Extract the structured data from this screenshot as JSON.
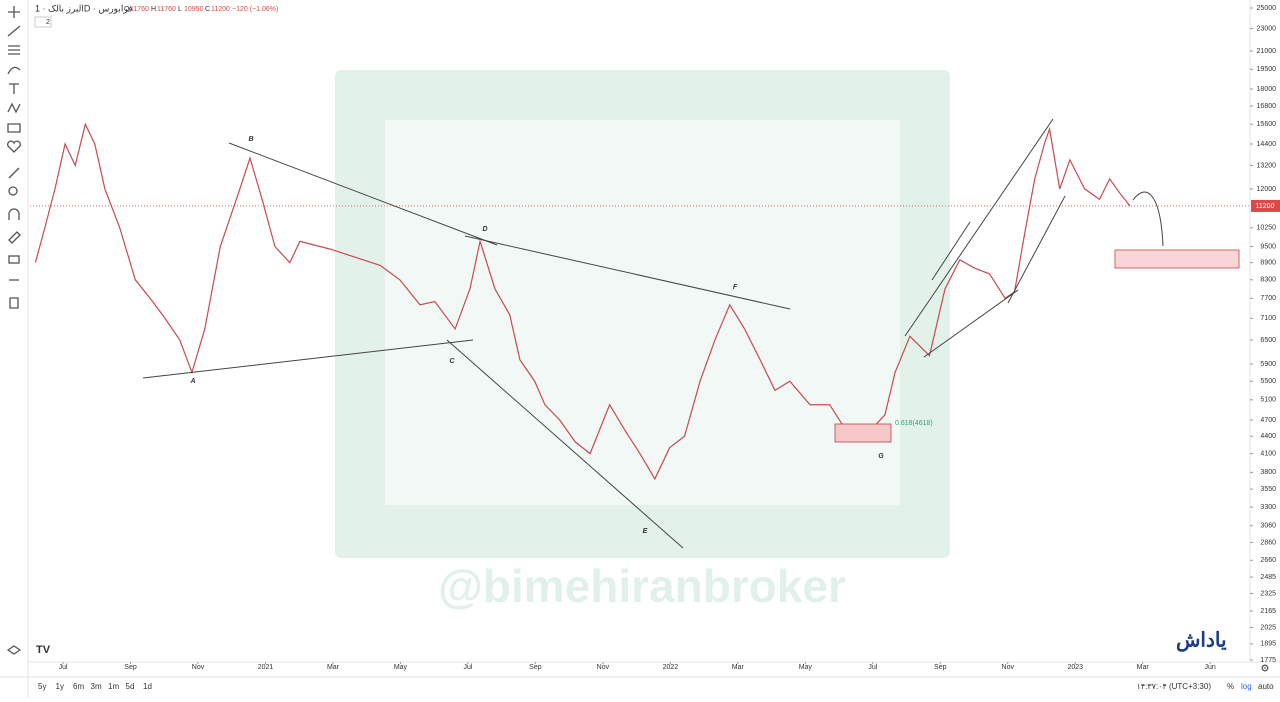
{
  "header": {
    "symbol": "البرز بالک · 1D · فرابورس",
    "ohlc": [
      {
        "label": "O",
        "value": 11760
      },
      {
        "label": "H",
        "value": 11760
      },
      {
        "label": "L",
        "value": 10950
      },
      {
        "label": "C",
        "value": 11200
      }
    ],
    "change": "−120 (−1.06%)",
    "indicator_count": "2"
  },
  "chart_data": {
    "type": "line",
    "log_scale": true,
    "color": "#c94a4f",
    "xlim": [
      -0.49,
      17.59
    ],
    "xticks": [
      {
        "value": 0,
        "label": "Jul"
      },
      {
        "value": 1,
        "label": "Sep"
      },
      {
        "value": 2,
        "label": "Nov"
      },
      {
        "value": 3,
        "label": "2021"
      },
      {
        "value": 4,
        "label": "Mar"
      },
      {
        "value": 5,
        "label": "May"
      },
      {
        "value": 6,
        "label": "Jul"
      },
      {
        "value": 7,
        "label": "Sep"
      },
      {
        "value": 8,
        "label": "Nov"
      },
      {
        "value": 9,
        "label": "2022"
      },
      {
        "value": 10,
        "label": "Mar"
      },
      {
        "value": 11,
        "label": "May"
      },
      {
        "value": 12,
        "label": "Jul"
      },
      {
        "value": 13,
        "label": "Sep"
      },
      {
        "value": 14,
        "label": "Nov"
      },
      {
        "value": 15,
        "label": "2023"
      },
      {
        "value": 16,
        "label": "Mar"
      },
      {
        "value": 17,
        "label": "Jun"
      }
    ],
    "ylim": [
      1775,
      25000
    ],
    "yticks": [
      1775,
      1895,
      2025,
      2165,
      2325,
      2485,
      2660,
      2860,
      3060,
      3300,
      3550,
      3800,
      4100,
      4400,
      4700,
      5100,
      5500,
      5900,
      6500,
      7100,
      7700,
      8300,
      8900,
      9500,
      10250,
      12000,
      13200,
      14400,
      15600,
      16800,
      18000,
      19500,
      21000,
      23000,
      25000
    ],
    "last_price": 11200,
    "series": [
      {
        "name": "Close",
        "color": "#c94a4f",
        "x": [
          -0.41,
          -0.27,
          -0.12,
          0.03,
          0.18,
          0.33,
          0.47,
          0.62,
          0.84,
          1.07,
          1.29,
          1.51,
          1.73,
          1.91,
          2.1,
          2.33,
          2.62,
          2.77,
          2.95,
          3.14,
          3.36,
          3.51,
          3.96,
          4.7,
          4.99,
          5.29,
          5.51,
          5.81,
          6.03,
          6.18,
          6.4,
          6.62,
          6.77,
          6.99,
          7.14,
          7.36,
          7.59,
          7.81,
          8.1,
          8.33,
          8.55,
          8.77,
          8.99,
          9.21,
          9.44,
          9.66,
          9.88,
          10.1,
          10.33,
          10.55,
          10.77,
          11.07,
          11.36,
          11.66,
          11.96,
          12.18,
          12.33,
          12.55,
          12.84,
          13.07,
          13.29,
          13.51,
          13.73,
          13.96,
          14.1,
          14.25,
          14.4,
          14.55,
          14.62,
          14.77,
          14.92,
          15.14,
          15.36,
          15.51,
          15.66,
          15.81
        ],
        "values": [
          8900,
          10250,
          12000,
          14400,
          13200,
          15600,
          14400,
          12000,
          10250,
          8300,
          7700,
          7100,
          6500,
          5700,
          6800,
          9500,
          12000,
          13600,
          11500,
          9500,
          8900,
          9700,
          9400,
          8800,
          8300,
          7500,
          7600,
          6800,
          8000,
          9700,
          8000,
          7200,
          6000,
          5500,
          5000,
          4700,
          4300,
          4100,
          5000,
          4500,
          4100,
          3700,
          4200,
          4400,
          5500,
          6500,
          7500,
          6800,
          6000,
          5300,
          5500,
          5000,
          5000,
          4400,
          4500,
          4800,
          5700,
          6600,
          6100,
          8000,
          9000,
          8700,
          8500,
          7700,
          7900,
          10000,
          12500,
          14500,
          15300,
          12000,
          13500,
          12000,
          11500,
          12500,
          11800,
          11200
        ]
      }
    ]
  },
  "annotations": {
    "waves": [
      "A",
      "B",
      "C",
      "D",
      "E",
      "F",
      "G"
    ],
    "fib": "0.618(4618)",
    "watermark": "@bimehiranbroker",
    "logo": "یاداش"
  },
  "footer": {
    "ranges": [
      "5y",
      "1y",
      "6m",
      "3m",
      "1m",
      "5d",
      "1d"
    ],
    "clock": "۱۴:۳۷:۰۴ (UTC+3:30)",
    "percent": "%",
    "log": "log",
    "auto": "auto"
  }
}
